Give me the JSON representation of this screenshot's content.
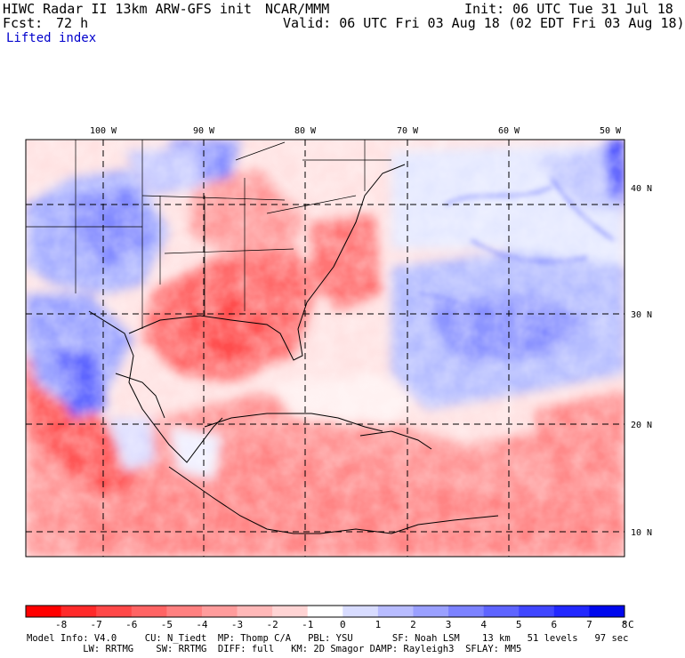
{
  "header": {
    "model": "HIWC Radar II 13km ARW-GFS init",
    "agency": "NCAR/MMM",
    "init": "Init: 06 UTC Tue 31 Jul 18",
    "fcst_label": "Fcst:",
    "fcst_value": "72 h",
    "valid": "Valid: 06 UTC Fri 03 Aug 18 (02 EDT Fri 03 Aug 18)",
    "field": "Lifted index"
  },
  "axes": {
    "lon_labels": [
      "100 W",
      "90 W",
      "80 W",
      "70 W",
      "60 W",
      "50 W"
    ],
    "lat_labels": [
      "40 N",
      "30 N",
      "20 N",
      "10 N"
    ]
  },
  "colorbar": {
    "ticks": [
      "-8",
      "-7",
      "-6",
      "-5",
      "-4",
      "-3",
      "-2",
      "-1",
      "0",
      "1",
      "2",
      "3",
      "4",
      "5",
      "6",
      "7",
      "8"
    ],
    "unit": "°C",
    "colors": [
      "#ff0000",
      "#ff2a2a",
      "#ff4848",
      "#ff6464",
      "#ff8080",
      "#ff9c9c",
      "#ffb8b8",
      "#ffd4d4",
      "#ffffff",
      "#d8dcff",
      "#b8bcff",
      "#9aa0ff",
      "#7c82ff",
      "#5e64ff",
      "#4046ff",
      "#2228ff",
      "#0008ee"
    ]
  },
  "footer": {
    "line1": "Model Info: V4.0     CU: N_Tiedt  MP: Thomp C/A   PBL: YSU       SF: Noah LSM    13 km   51 levels   97 sec",
    "line2": "          LW: RRTMG    SW: RRTMG  DIFF: full   KM: 2D Smagor DAMP: Rayleigh3  SFLAY: MM5"
  }
}
